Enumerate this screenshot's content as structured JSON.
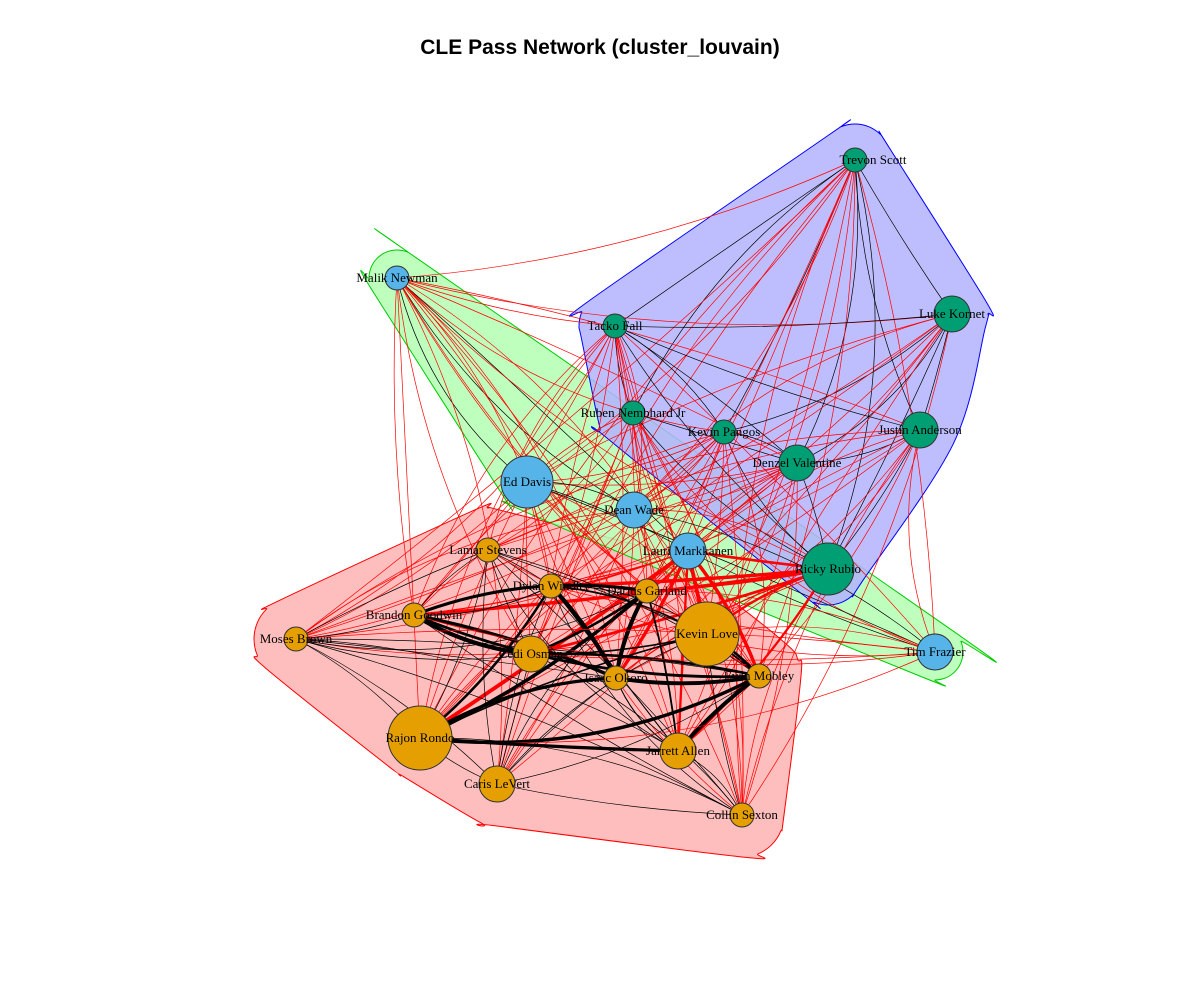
{
  "title": "CLE Pass Network (cluster_louvain)",
  "colors": {
    "node_orange": "#E69F00",
    "node_green": "#009E73",
    "node_blue": "#56B4E9",
    "hull_red": "#FFB3B3",
    "hull_green": "#B3FFB3",
    "hull_blue": "#B3B3FF",
    "edge_within": "#000000",
    "edge_between": "#FF0000"
  },
  "nodes": [
    {
      "id": "trevon",
      "label": "Trevon Scott",
      "color": "node_green",
      "size": 1
    },
    {
      "id": "luke",
      "label": "Luke Kornet",
      "color": "node_green",
      "size": 2
    },
    {
      "id": "malik",
      "label": "Malik Newman",
      "color": "node_blue",
      "size": 1
    },
    {
      "id": "tacko",
      "label": "Tacko Fall",
      "color": "node_green",
      "size": 1
    },
    {
      "id": "ruben",
      "label": "Ruben Nembhard Jr",
      "color": "node_green",
      "size": 1
    },
    {
      "id": "kevinp",
      "label": "Kevin Pangos",
      "color": "node_green",
      "size": 1
    },
    {
      "id": "justin",
      "label": "Justin Anderson",
      "color": "node_green",
      "size": 2
    },
    {
      "id": "denzel",
      "label": "Denzel Valentine",
      "color": "node_green",
      "size": 2
    },
    {
      "id": "eddavis",
      "label": "Ed Davis",
      "color": "node_blue",
      "size": 3
    },
    {
      "id": "dean",
      "label": "Dean Wade",
      "color": "node_blue",
      "size": 2
    },
    {
      "id": "lauri",
      "label": "Lauri Markkanen",
      "color": "node_blue",
      "size": 2
    },
    {
      "id": "ricky",
      "label": "Ricky Rubio",
      "color": "node_green",
      "size": 3
    },
    {
      "id": "lamar",
      "label": "Lamar Stevens",
      "color": "node_orange",
      "size": 1
    },
    {
      "id": "dylan",
      "label": "Dylan Windler",
      "color": "node_orange",
      "size": 1
    },
    {
      "id": "darius",
      "label": "Darius Garland",
      "color": "node_orange",
      "size": 1
    },
    {
      "id": "brandon",
      "label": "Brandon Goodwin",
      "color": "node_orange",
      "size": 1
    },
    {
      "id": "moses",
      "label": "Moses Brown",
      "color": "node_orange",
      "size": 1
    },
    {
      "id": "cedi",
      "label": "Cedi Osman",
      "color": "node_orange",
      "size": 2
    },
    {
      "id": "kevinl",
      "label": "Kevin Love",
      "color": "node_orange",
      "size": 4
    },
    {
      "id": "isaac",
      "label": "Isaac Okoro",
      "color": "node_orange",
      "size": 1
    },
    {
      "id": "evan",
      "label": "Evan Mobley",
      "color": "node_orange",
      "size": 1
    },
    {
      "id": "tim",
      "label": "Tim Frazier",
      "color": "node_blue",
      "size": 2
    },
    {
      "id": "rajon",
      "label": "Rajon Rondo",
      "color": "node_orange",
      "size": 4
    },
    {
      "id": "jarrett",
      "label": "Jarrett Allen",
      "color": "node_orange",
      "size": 2
    },
    {
      "id": "caris",
      "label": "Caris LeVert",
      "color": "node_orange",
      "size": 2
    },
    {
      "id": "collin",
      "label": "Collin Sexton",
      "color": "node_orange",
      "size": 1
    }
  ],
  "groups": [
    {
      "name": "red",
      "color": "hull_red",
      "members": [
        "lamar",
        "dylan",
        "darius",
        "brandon",
        "moses",
        "cedi",
        "kevinl",
        "isaac",
        "evan",
        "rajon",
        "jarrett",
        "caris",
        "collin"
      ]
    },
    {
      "name": "green",
      "color": "hull_green",
      "members": [
        "malik",
        "eddavis",
        "dean",
        "lauri",
        "tim"
      ]
    },
    {
      "name": "blue",
      "color": "hull_blue",
      "members": [
        "trevon",
        "luke",
        "tacko",
        "ruben",
        "kevinp",
        "justin",
        "denzel",
        "ricky"
      ]
    }
  ]
}
